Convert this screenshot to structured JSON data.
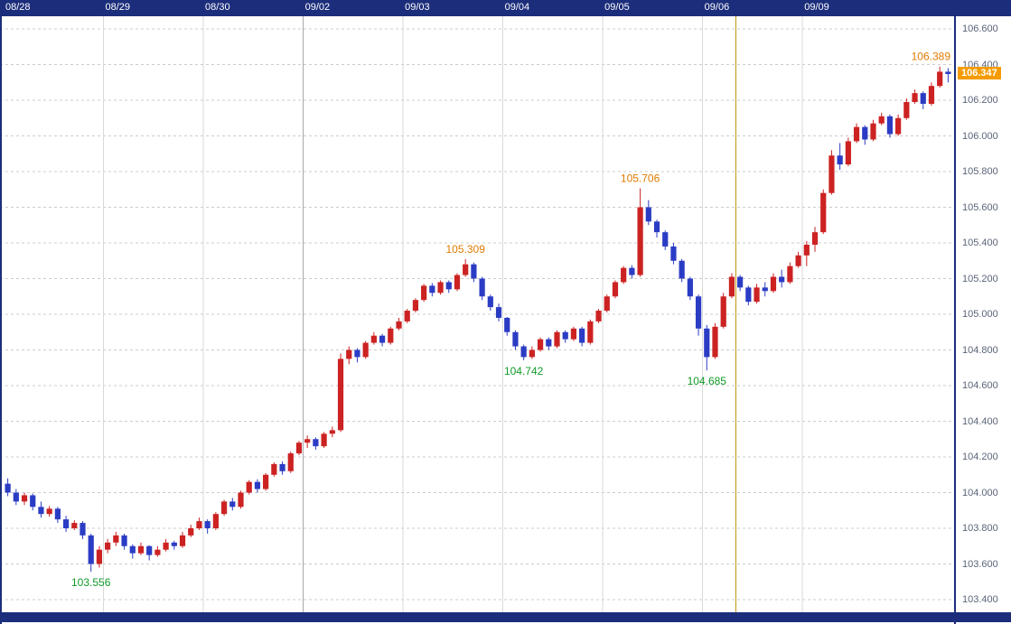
{
  "chart_data": {
    "type": "candlestick",
    "y_axis": {
      "position": "right",
      "min": 103.4,
      "max": 106.6,
      "step": 0.2,
      "labels": [
        "106.600",
        "106.400",
        "106.200",
        "106.000",
        "105.800",
        "105.600",
        "105.400",
        "105.200",
        "105.000",
        "104.800",
        "104.600",
        "104.400",
        "104.200",
        "104.000",
        "103.800",
        "103.600",
        "103.400"
      ]
    },
    "last_price": {
      "value": "106.347"
    },
    "annotations": [
      {
        "text": "103.556",
        "index": 10,
        "position": "below"
      },
      {
        "text": "105.309",
        "index": 55,
        "position": "above"
      },
      {
        "text": "104.742",
        "index": 62,
        "position": "below"
      },
      {
        "text": "105.706",
        "index": 76,
        "position": "above"
      },
      {
        "text": "104.685",
        "index": 84,
        "position": "below"
      },
      {
        "text": "106.389",
        "index": 112,
        "position": "above"
      }
    ],
    "marker_line": {
      "color": "#c2990f",
      "candle_index": 88
    },
    "week_separator_day": "09/02",
    "colors": {
      "up": "#cc2222",
      "down": "#2b3cc4",
      "grid": "#cccccc",
      "day_line": "#d9d9d9",
      "week_line": "#a8a8a8",
      "frame": "#1c2e7b",
      "axis_text": "#5a6478",
      "date_text": "#ffffff",
      "high_label": "#e07b00",
      "low_label": "#109a28",
      "last_price_bg": "#f59b00",
      "last_price_text": "#ffffff"
    },
    "days": [
      {
        "label": "08/28",
        "candles": [
          [
            104.05,
            104.08,
            103.98,
            104.0
          ],
          [
            104.0,
            104.02,
            103.93,
            103.95
          ],
          [
            103.95,
            104.0,
            103.93,
            103.985
          ],
          [
            103.985,
            103.995,
            103.9,
            103.92
          ],
          [
            103.92,
            103.95,
            103.86,
            103.88
          ],
          [
            103.88,
            103.925,
            103.865,
            103.91
          ],
          [
            103.91,
            103.92,
            103.83,
            103.85
          ],
          [
            103.85,
            103.87,
            103.78,
            103.8
          ],
          [
            103.8,
            103.845,
            103.79,
            103.83
          ],
          [
            103.83,
            103.84,
            103.74,
            103.76
          ],
          [
            103.76,
            103.77,
            103.556,
            103.6
          ],
          [
            103.6,
            103.7,
            103.58,
            103.68
          ]
        ]
      },
      {
        "label": "08/29",
        "candles": [
          [
            103.68,
            103.74,
            103.66,
            103.72
          ],
          [
            103.72,
            103.78,
            103.7,
            103.76
          ],
          [
            103.76,
            103.77,
            103.68,
            103.7
          ],
          [
            103.7,
            103.71,
            103.63,
            103.66
          ],
          [
            103.66,
            103.72,
            103.65,
            103.7
          ],
          [
            103.7,
            103.705,
            103.62,
            103.65
          ],
          [
            103.65,
            103.7,
            103.64,
            103.68
          ],
          [
            103.68,
            103.74,
            103.67,
            103.72
          ],
          [
            103.72,
            103.73,
            103.68,
            103.7
          ],
          [
            103.7,
            103.78,
            103.69,
            103.76
          ],
          [
            103.76,
            103.82,
            103.75,
            103.8
          ],
          [
            103.8,
            103.86,
            103.79,
            103.84
          ]
        ]
      },
      {
        "label": "08/30",
        "candles": [
          [
            103.84,
            103.85,
            103.77,
            103.8
          ],
          [
            103.8,
            103.89,
            103.79,
            103.88
          ],
          [
            103.88,
            103.96,
            103.87,
            103.95
          ],
          [
            103.95,
            103.97,
            103.9,
            103.92
          ],
          [
            103.92,
            104.01,
            103.91,
            104.0
          ],
          [
            104.0,
            104.07,
            103.99,
            104.06
          ],
          [
            104.06,
            104.075,
            104.0,
            104.02
          ],
          [
            104.02,
            104.11,
            104.01,
            104.1
          ],
          [
            104.1,
            104.17,
            104.09,
            104.16
          ],
          [
            104.16,
            104.175,
            104.1,
            104.12
          ],
          [
            104.12,
            104.23,
            104.11,
            104.22
          ],
          [
            104.22,
            104.29,
            104.21,
            104.28
          ]
        ]
      },
      {
        "label": "09/02",
        "candles": [
          [
            104.28,
            104.32,
            104.25,
            104.3
          ],
          [
            104.3,
            104.31,
            104.24,
            104.26
          ],
          [
            104.26,
            104.34,
            104.25,
            104.33
          ],
          [
            104.33,
            104.37,
            104.31,
            104.35
          ],
          [
            104.35,
            104.78,
            104.34,
            104.75
          ],
          [
            104.75,
            104.82,
            104.72,
            104.8
          ],
          [
            104.8,
            104.81,
            104.73,
            104.76
          ],
          [
            104.76,
            104.85,
            104.75,
            104.84
          ],
          [
            104.84,
            104.9,
            104.83,
            104.88
          ],
          [
            104.88,
            104.89,
            104.82,
            104.84
          ],
          [
            104.84,
            104.93,
            104.83,
            104.92
          ],
          [
            104.92,
            104.98,
            104.91,
            104.96
          ]
        ]
      },
      {
        "label": "09/03",
        "candles": [
          [
            104.96,
            105.03,
            104.95,
            105.02
          ],
          [
            105.02,
            105.09,
            105.01,
            105.08
          ],
          [
            105.08,
            105.17,
            105.07,
            105.16
          ],
          [
            105.16,
            105.175,
            105.1,
            105.12
          ],
          [
            105.12,
            105.19,
            105.11,
            105.18
          ],
          [
            105.18,
            105.19,
            105.12,
            105.14
          ],
          [
            105.14,
            105.23,
            105.13,
            105.22
          ],
          [
            105.22,
            105.309,
            105.21,
            105.28
          ],
          [
            105.28,
            105.29,
            105.18,
            105.2
          ],
          [
            105.2,
            105.21,
            105.08,
            105.1
          ],
          [
            105.1,
            105.11,
            105.02,
            105.04
          ],
          [
            105.04,
            105.06,
            104.96,
            104.98
          ]
        ]
      },
      {
        "label": "09/04",
        "candles": [
          [
            104.98,
            104.985,
            104.88,
            104.9
          ],
          [
            104.9,
            104.91,
            104.8,
            104.82
          ],
          [
            104.82,
            104.83,
            104.742,
            104.76
          ],
          [
            104.76,
            104.82,
            104.75,
            104.8
          ],
          [
            104.8,
            104.87,
            104.79,
            104.86
          ],
          [
            104.86,
            104.87,
            104.8,
            104.82
          ],
          [
            104.82,
            104.91,
            104.81,
            104.9
          ],
          [
            104.9,
            104.91,
            104.84,
            104.86
          ],
          [
            104.86,
            104.93,
            104.85,
            104.92
          ],
          [
            104.92,
            104.93,
            104.82,
            104.84
          ],
          [
            104.84,
            104.97,
            104.83,
            104.96
          ],
          [
            104.96,
            105.03,
            104.95,
            105.02
          ]
        ]
      },
      {
        "label": "09/05",
        "candles": [
          [
            105.02,
            105.11,
            105.01,
            105.1
          ],
          [
            105.1,
            105.19,
            105.09,
            105.18
          ],
          [
            105.18,
            105.27,
            105.17,
            105.26
          ],
          [
            105.26,
            105.275,
            105.2,
            105.22
          ],
          [
            105.22,
            105.706,
            105.21,
            105.6
          ],
          [
            105.6,
            105.64,
            105.5,
            105.52
          ],
          [
            105.52,
            105.53,
            105.43,
            105.46
          ],
          [
            105.46,
            105.47,
            105.36,
            105.38
          ],
          [
            105.38,
            105.4,
            105.28,
            105.3
          ],
          [
            105.3,
            105.31,
            105.18,
            105.2
          ],
          [
            105.2,
            105.21,
            105.08,
            105.1
          ],
          [
            105.1,
            105.11,
            104.88,
            104.92
          ]
        ]
      },
      {
        "label": "09/06",
        "candles": [
          [
            104.92,
            104.94,
            104.685,
            104.76
          ],
          [
            104.76,
            104.95,
            104.75,
            104.93
          ],
          [
            104.93,
            105.12,
            104.92,
            105.1
          ],
          [
            105.1,
            105.23,
            105.09,
            105.21
          ],
          [
            105.21,
            105.22,
            105.13,
            105.15
          ],
          [
            105.15,
            105.16,
            105.05,
            105.07
          ],
          [
            105.07,
            105.17,
            105.06,
            105.15
          ],
          [
            105.15,
            105.18,
            105.1,
            105.13
          ],
          [
            105.13,
            105.23,
            105.12,
            105.21
          ],
          [
            105.21,
            105.25,
            105.15,
            105.18
          ],
          [
            105.18,
            105.29,
            105.17,
            105.27
          ],
          [
            105.27,
            105.35,
            105.26,
            105.33
          ]
        ]
      },
      {
        "label": "09/09",
        "candles": [
          [
            105.33,
            105.41,
            105.27,
            105.39
          ],
          [
            105.39,
            105.49,
            105.35,
            105.46
          ],
          [
            105.46,
            105.7,
            105.45,
            105.68
          ],
          [
            105.68,
            105.92,
            105.67,
            105.89
          ],
          [
            105.89,
            105.96,
            105.81,
            105.84
          ],
          [
            105.84,
            105.99,
            105.83,
            105.97
          ],
          [
            105.97,
            106.07,
            105.96,
            106.05
          ],
          [
            106.05,
            106.06,
            105.95,
            105.98
          ],
          [
            105.98,
            106.09,
            105.97,
            106.07
          ],
          [
            106.07,
            106.13,
            106.06,
            106.11
          ],
          [
            106.11,
            106.12,
            105.99,
            106.01
          ],
          [
            106.01,
            106.12,
            106.0,
            106.1
          ],
          [
            106.1,
            106.21,
            106.09,
            106.19
          ],
          [
            106.19,
            106.26,
            106.18,
            106.24
          ],
          [
            106.24,
            106.25,
            106.15,
            106.18
          ],
          [
            106.18,
            106.3,
            106.17,
            106.28
          ],
          [
            106.28,
            106.389,
            106.27,
            106.36
          ],
          [
            106.36,
            106.38,
            106.3,
            106.347
          ]
        ]
      }
    ]
  }
}
